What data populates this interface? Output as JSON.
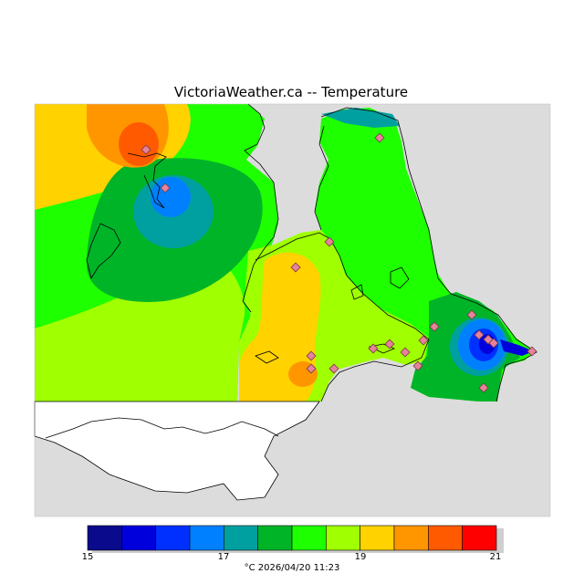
{
  "header": {
    "title": "VictoriaWeather.ca -- Temperature"
  },
  "legend": {
    "ticks": [
      "15",
      "17",
      "19",
      "21"
    ],
    "caption": "°C  2026/04/20 11:23",
    "colors": [
      "#0a0a8c",
      "#0000dc",
      "#0030ff",
      "#0080ff",
      "#00a0a0",
      "#00b428",
      "#00c800",
      "#1eff00",
      "#a0ff00",
      "#ffd200",
      "#ff9600",
      "#ff5a00",
      "#ff0000"
    ]
  },
  "map": {
    "colors": {
      "background": "#dcdcdc",
      "land_mask": "#ffffff",
      "coast": "#000000",
      "station_fill": "#e6829a",
      "station_stroke": "#7a3a4a"
    }
  }
}
